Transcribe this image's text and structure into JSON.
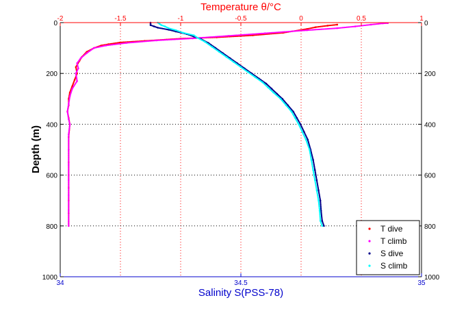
{
  "chart_data": {
    "type": "scatter",
    "top_axis": {
      "label": "Temperature θ/°C",
      "lim": [
        -2,
        1
      ],
      "ticks": [
        -2,
        -1.5,
        -1,
        -0.5,
        0,
        0.5,
        1
      ],
      "tick_labels": [
        "-2",
        "-1.5",
        "-1",
        "-0.5",
        "0",
        "0.5",
        "1"
      ],
      "color": "#ff0000"
    },
    "bottom_axis": {
      "label": "Salinity S(PSS-78)",
      "lim": [
        34,
        35
      ],
      "ticks": [
        34,
        34.5,
        35
      ],
      "tick_labels": [
        "34",
        "34.5",
        "35"
      ],
      "color": "#0000cc"
    },
    "y_axis": {
      "label": "Depth (m)",
      "lim": [
        0,
        1000
      ],
      "reversed": true,
      "ticks": [
        0,
        200,
        400,
        600,
        800,
        1000
      ],
      "tick_labels": [
        "0",
        "200",
        "400",
        "600",
        "800",
        "1000"
      ]
    },
    "grid": {
      "temperature_vertical": true,
      "depth_horizontal": true,
      "style": "dotted"
    },
    "legend_position": "bottom-right",
    "series": [
      {
        "name": "T dive",
        "axis": "temperature",
        "color": "#ff0000",
        "marker": "dot",
        "points": [
          [
            0.3,
            8
          ],
          [
            0.22,
            12
          ],
          [
            0.12,
            18
          ],
          [
            0.05,
            25
          ],
          [
            -0.15,
            40
          ],
          [
            -0.4,
            50
          ],
          [
            -0.7,
            58
          ],
          [
            -1.0,
            63
          ],
          [
            -1.3,
            72
          ],
          [
            -1.5,
            78
          ],
          [
            -1.6,
            85
          ],
          [
            -1.66,
            90
          ],
          [
            -1.72,
            100
          ],
          [
            -1.78,
            115
          ],
          [
            -1.82,
            135
          ],
          [
            -1.84,
            150
          ],
          [
            -1.87,
            175
          ],
          [
            -1.86,
            200
          ],
          [
            -1.88,
            225
          ],
          [
            -1.9,
            250
          ],
          [
            -1.92,
            275
          ],
          [
            -1.93,
            300
          ],
          [
            -1.93,
            325
          ],
          [
            -1.94,
            350
          ],
          [
            -1.93,
            375
          ],
          [
            -1.92,
            400
          ],
          [
            -1.93,
            450
          ],
          [
            -1.93,
            500
          ],
          [
            -1.93,
            550
          ],
          [
            -1.93,
            600
          ],
          [
            -1.93,
            650
          ],
          [
            -1.93,
            700
          ],
          [
            -1.93,
            750
          ],
          [
            -1.93,
            800
          ]
        ]
      },
      {
        "name": "T climb",
        "axis": "temperature",
        "color": "#ff00ff",
        "marker": "dot",
        "points": [
          [
            0.72,
            2
          ],
          [
            0.68,
            3
          ],
          [
            0.58,
            8
          ],
          [
            0.45,
            15
          ],
          [
            0.3,
            22
          ],
          [
            0.05,
            30
          ],
          [
            -0.3,
            42
          ],
          [
            -0.6,
            52
          ],
          [
            -0.9,
            62
          ],
          [
            -1.2,
            70
          ],
          [
            -1.45,
            80
          ],
          [
            -1.62,
            90
          ],
          [
            -1.72,
            100
          ],
          [
            -1.78,
            120
          ],
          [
            -1.83,
            140
          ],
          [
            -1.86,
            160
          ],
          [
            -1.85,
            180
          ],
          [
            -1.87,
            200
          ],
          [
            -1.86,
            230
          ],
          [
            -1.9,
            260
          ],
          [
            -1.92,
            290
          ],
          [
            -1.93,
            320
          ],
          [
            -1.94,
            350
          ],
          [
            -1.93,
            380
          ],
          [
            -1.92,
            400
          ],
          [
            -1.93,
            440
          ],
          [
            -1.93,
            500
          ],
          [
            -1.93,
            560
          ],
          [
            -1.93,
            620
          ],
          [
            -1.93,
            680
          ],
          [
            -1.93,
            740
          ],
          [
            -1.93,
            800
          ]
        ]
      },
      {
        "name": "S dive",
        "axis": "salinity",
        "color": "#00008b",
        "marker": "dot",
        "points": [
          [
            34.25,
            0
          ],
          [
            34.25,
            5
          ],
          [
            34.25,
            10
          ],
          [
            34.26,
            15
          ],
          [
            34.27,
            20
          ],
          [
            34.3,
            28
          ],
          [
            34.32,
            35
          ],
          [
            34.35,
            45
          ],
          [
            34.37,
            55
          ],
          [
            34.39,
            65
          ],
          [
            34.41,
            80
          ],
          [
            34.43,
            100
          ],
          [
            34.45,
            120
          ],
          [
            34.47,
            140
          ],
          [
            34.49,
            160
          ],
          [
            34.51,
            180
          ],
          [
            34.53,
            200
          ],
          [
            34.55,
            220
          ],
          [
            34.57,
            240
          ],
          [
            34.585,
            260
          ],
          [
            34.6,
            280
          ],
          [
            34.615,
            300
          ],
          [
            34.63,
            325
          ],
          [
            34.645,
            350
          ],
          [
            34.655,
            375
          ],
          [
            34.665,
            400
          ],
          [
            34.675,
            430
          ],
          [
            34.685,
            460
          ],
          [
            34.693,
            500
          ],
          [
            34.7,
            540
          ],
          [
            34.705,
            580
          ],
          [
            34.71,
            620
          ],
          [
            34.715,
            660
          ],
          [
            34.72,
            700
          ],
          [
            34.722,
            740
          ],
          [
            34.725,
            780
          ],
          [
            34.73,
            800
          ]
        ]
      },
      {
        "name": "S climb",
        "axis": "salinity",
        "color": "#00ffff",
        "marker": "dot",
        "points": [
          [
            34.27,
            0
          ],
          [
            34.275,
            5
          ],
          [
            34.28,
            10
          ],
          [
            34.29,
            15
          ],
          [
            34.3,
            22
          ],
          [
            34.32,
            30
          ],
          [
            34.34,
            40
          ],
          [
            34.37,
            50
          ],
          [
            34.38,
            60
          ],
          [
            34.4,
            75
          ],
          [
            34.42,
            95
          ],
          [
            34.44,
            115
          ],
          [
            34.46,
            135
          ],
          [
            34.48,
            155
          ],
          [
            34.5,
            175
          ],
          [
            34.52,
            195
          ],
          [
            34.54,
            215
          ],
          [
            34.56,
            235
          ],
          [
            34.575,
            255
          ],
          [
            34.59,
            275
          ],
          [
            34.61,
            300
          ],
          [
            34.625,
            325
          ],
          [
            34.64,
            350
          ],
          [
            34.65,
            375
          ],
          [
            34.66,
            400
          ],
          [
            34.67,
            430
          ],
          [
            34.68,
            460
          ],
          [
            34.69,
            500
          ],
          [
            34.695,
            540
          ],
          [
            34.7,
            580
          ],
          [
            34.705,
            620
          ],
          [
            34.71,
            660
          ],
          [
            34.715,
            700
          ],
          [
            34.718,
            740
          ],
          [
            34.72,
            780
          ],
          [
            34.725,
            800
          ]
        ]
      }
    ]
  }
}
